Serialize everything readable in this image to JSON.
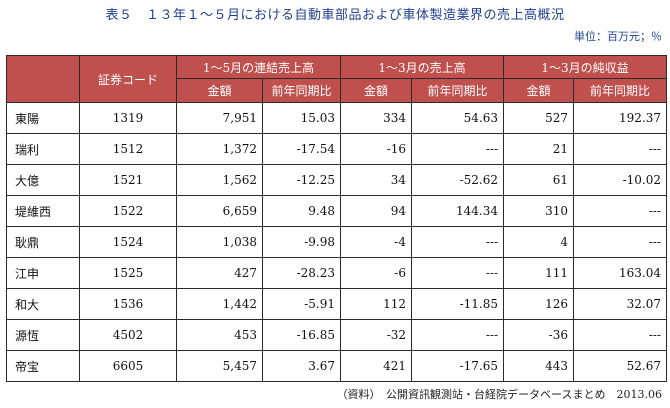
{
  "title": "表５　１３年１～５月における自動車部品および車体製造業界の売上高概況",
  "unit": "単位：百万元；％",
  "table": {
    "header_code": "証券コード",
    "groups": [
      "1～5月の連結売上高",
      "1～3月の売上高",
      "1～3月の純収益"
    ],
    "subheaders": [
      "金額",
      "前年同期比",
      "金額",
      "前年同期比",
      "金額",
      "前年同期比"
    ],
    "rows": [
      [
        "東陽",
        "1319",
        "7,951",
        "15.03",
        "334",
        "54.63",
        "527",
        "192.37"
      ],
      [
        "瑞利",
        "1512",
        "1,372",
        "-17.54",
        "-16",
        "---",
        "21",
        "---"
      ],
      [
        "大億",
        "1521",
        "1,562",
        "-12.25",
        "34",
        "-52.62",
        "61",
        "-10.02"
      ],
      [
        "堤維西",
        "1522",
        "6,659",
        "9.48",
        "94",
        "144.34",
        "310",
        "---"
      ],
      [
        "耿鼎",
        "1524",
        "1,038",
        "-9.98",
        "-4",
        "---",
        "4",
        "---"
      ],
      [
        "江申",
        "1525",
        "427",
        "-28.23",
        "-6",
        "---",
        "111",
        "163.04"
      ],
      [
        "和大",
        "1536",
        "1,442",
        "-5.91",
        "112",
        "-11.85",
        "126",
        "32.07"
      ],
      [
        "源恆",
        "4502",
        "453",
        "-16.85",
        "-32",
        "---",
        "-36",
        "---"
      ],
      [
        "帝宝",
        "6605",
        "5,457",
        "3.67",
        "421",
        "-17.65",
        "443",
        "52.67"
      ]
    ]
  },
  "source": "（資料）　公開資訊観測站・台経院データベースまとめ　2013.06"
}
